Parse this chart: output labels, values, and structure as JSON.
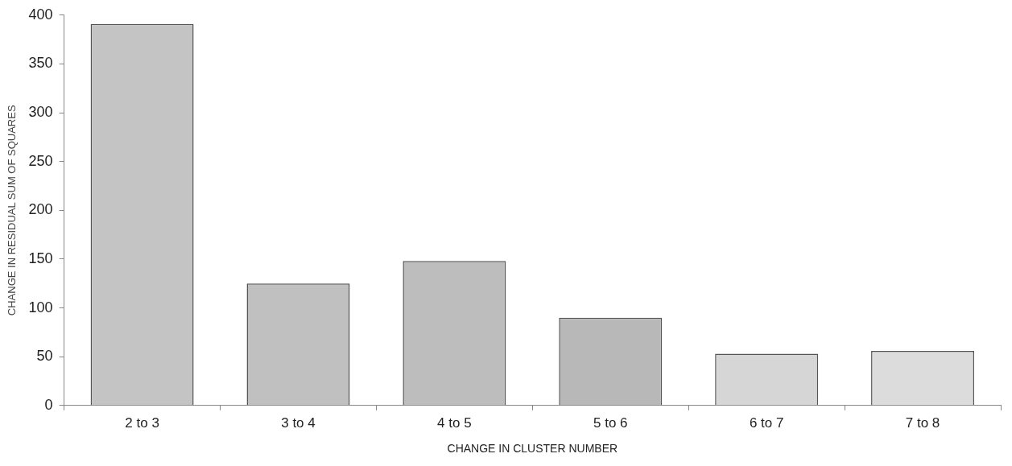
{
  "chart_data": {
    "type": "bar",
    "xlabel": "CHANGE IN CLUSTER NUMBER",
    "ylabel": "CHANGE IN RESIDUAL SUM OF SQUARES",
    "categories": [
      "2 to 3",
      "3 to 4",
      "4 to 5",
      "5 to 6",
      "6 to 7",
      "7 to 8"
    ],
    "values": [
      391,
      125,
      148,
      90,
      53,
      56
    ],
    "colors": [
      "#c4c4c4",
      "#c0c0c0",
      "#bdbdbd",
      "#b8b8b8",
      "#d6d6d6",
      "#dcdcdc"
    ],
    "ylim": [
      0,
      400
    ],
    "yticks": [
      0,
      50,
      100,
      150,
      200,
      250,
      300,
      350,
      400
    ],
    "grid": false,
    "legend": false
  }
}
